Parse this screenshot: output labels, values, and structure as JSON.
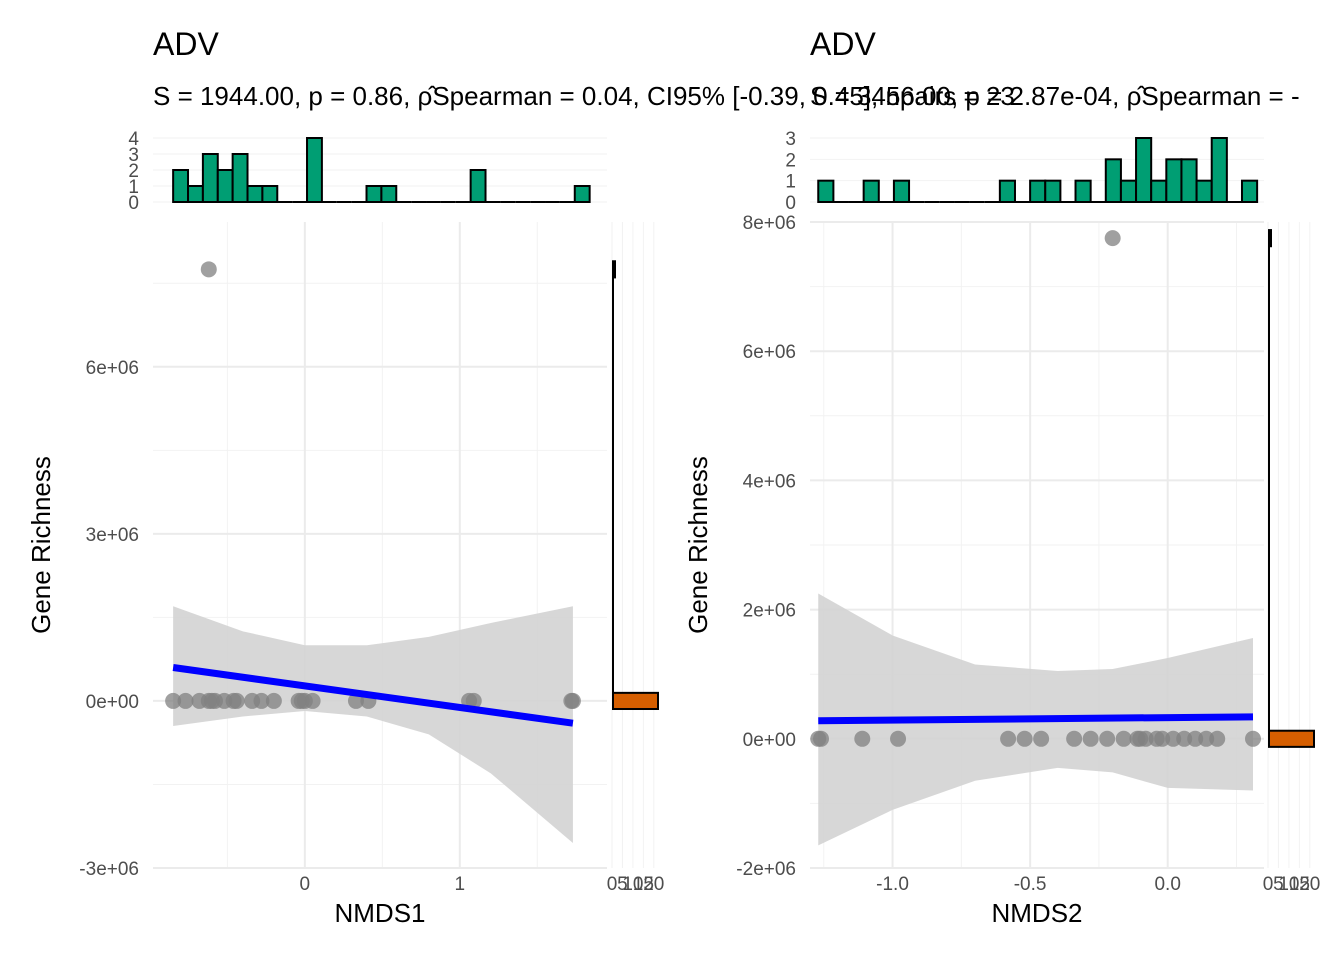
{
  "colors": {
    "top_hist_fill": "#009E73",
    "side_hist_fill": "#D55E00",
    "regression_line": "#0000FF",
    "confidence_band": "#D3D3D3",
    "points": "#808080"
  },
  "chart_data": [
    {
      "type": "scatter",
      "title": "ADV",
      "subtitle": "S = 1944.00, p = 0.86, ρ̂Spearman = 0.04, CI95% [-0.39, 0.45], npairs = 23",
      "xlabel": "NMDS1",
      "ylabel": "Gene Richness",
      "xlim": [
        -0.98,
        1.95
      ],
      "ylim": [
        -3000000,
        8600000
      ],
      "x_ticks": [
        0,
        1
      ],
      "x_tick_labels": [
        "0",
        "1"
      ],
      "y_ticks": [
        -3000000,
        0,
        3000000,
        6000000
      ],
      "y_tick_labels": [
        "-3e+06",
        "0e+00",
        "3e+06",
        "6e+06"
      ],
      "grid": true,
      "points": [
        {
          "x": -0.85,
          "y": 0
        },
        {
          "x": -0.77,
          "y": 0
        },
        {
          "x": -0.68,
          "y": 0
        },
        {
          "x": -0.62,
          "y": 0
        },
        {
          "x": -0.6,
          "y": 0
        },
        {
          "x": -0.58,
          "y": 0
        },
        {
          "x": -0.52,
          "y": 0
        },
        {
          "x": -0.46,
          "y": 0
        },
        {
          "x": -0.44,
          "y": 0
        },
        {
          "x": -0.34,
          "y": 0
        },
        {
          "x": -0.28,
          "y": 0
        },
        {
          "x": -0.2,
          "y": 0
        },
        {
          "x": -0.04,
          "y": 0
        },
        {
          "x": -0.02,
          "y": 0
        },
        {
          "x": 0,
          "y": 0
        },
        {
          "x": 0.05,
          "y": 0
        },
        {
          "x": 0.33,
          "y": 0
        },
        {
          "x": 0.41,
          "y": 0
        },
        {
          "x": 1.06,
          "y": 0
        },
        {
          "x": 1.09,
          "y": 0
        },
        {
          "x": 1.72,
          "y": 0
        },
        {
          "x": 1.73,
          "y": 0
        },
        {
          "x": -0.62,
          "y": 7750000
        }
      ],
      "fit_line": {
        "x": [
          -0.85,
          1.73
        ],
        "y": [
          600000,
          -400000
        ]
      },
      "ci_band": {
        "x": [
          -0.85,
          -0.4,
          0,
          0.4,
          0.8,
          1.2,
          1.73
        ],
        "upper": [
          1700000,
          1250000,
          1000000,
          1000000,
          1150000,
          1400000,
          1700000
        ],
        "lower": [
          -450000,
          -280000,
          -180000,
          -280000,
          -600000,
          -1300000,
          -2550000
        ]
      },
      "x_histogram": {
        "bin_width": 0.096,
        "bins": [
          {
            "x": -0.85,
            "count": 2
          },
          {
            "x": -0.754,
            "count": 1
          },
          {
            "x": -0.658,
            "count": 3
          },
          {
            "x": -0.562,
            "count": 2
          },
          {
            "x": -0.466,
            "count": 3
          },
          {
            "x": -0.37,
            "count": 1
          },
          {
            "x": -0.274,
            "count": 1
          },
          {
            "x": -0.178,
            "count": 0
          },
          {
            "x": -0.082,
            "count": 0
          },
          {
            "x": 0.014,
            "count": 4
          },
          {
            "x": 0.11,
            "count": 0
          },
          {
            "x": 0.206,
            "count": 0
          },
          {
            "x": 0.302,
            "count": 0
          },
          {
            "x": 0.398,
            "count": 1
          },
          {
            "x": 0.494,
            "count": 1
          },
          {
            "x": 0.59,
            "count": 0
          },
          {
            "x": 0.686,
            "count": 0
          },
          {
            "x": 0.782,
            "count": 0
          },
          {
            "x": 0.878,
            "count": 0
          },
          {
            "x": 0.974,
            "count": 0
          },
          {
            "x": 1.07,
            "count": 2
          },
          {
            "x": 1.166,
            "count": 0
          },
          {
            "x": 1.262,
            "count": 0
          },
          {
            "x": 1.358,
            "count": 0
          },
          {
            "x": 1.454,
            "count": 0
          },
          {
            "x": 1.55,
            "count": 0
          },
          {
            "x": 1.646,
            "count": 0
          },
          {
            "x": 1.742,
            "count": 1
          }
        ],
        "y_ticks": [
          0,
          1,
          2,
          3,
          4
        ],
        "y_max": 4
      },
      "y_histogram": {
        "bins": [
          {
            "y": 0,
            "count": 22
          },
          {
            "y": 7750000,
            "count": 1
          }
        ],
        "x_ticks": [
          0,
          5,
          10,
          15,
          20
        ],
        "x_tick_labels": [
          "0",
          "5",
          "10",
          "15",
          "20"
        ],
        "x_max": 22
      }
    },
    {
      "type": "scatter",
      "title": "ADV",
      "subtitle": "S = 3456.00, p = 2.87e-04, ρ̂Spearman = -",
      "xlabel": "NMDS2",
      "ylabel": "Gene Richness",
      "xlim": [
        -1.3,
        0.35
      ],
      "ylim": [
        -2000000,
        8000000
      ],
      "x_ticks": [
        -1.0,
        -0.5,
        0.0
      ],
      "x_tick_labels": [
        "-1.0",
        "-0.5",
        "0.0"
      ],
      "y_ticks": [
        -2000000,
        0,
        2000000,
        4000000,
        6000000,
        8000000
      ],
      "y_tick_labels": [
        "-2e+06",
        "0e+00",
        "2e+06",
        "4e+06",
        "6e+06",
        "8e+06"
      ],
      "grid": true,
      "points": [
        {
          "x": -1.27,
          "y": 0
        },
        {
          "x": -1.26,
          "y": 0
        },
        {
          "x": -1.11,
          "y": 0
        },
        {
          "x": -0.98,
          "y": 0
        },
        {
          "x": -0.58,
          "y": 0
        },
        {
          "x": -0.52,
          "y": 0
        },
        {
          "x": -0.46,
          "y": 0
        },
        {
          "x": -0.34,
          "y": 0
        },
        {
          "x": -0.28,
          "y": 0
        },
        {
          "x": -0.22,
          "y": 0
        },
        {
          "x": -0.16,
          "y": 0
        },
        {
          "x": -0.11,
          "y": 0
        },
        {
          "x": -0.1,
          "y": 0
        },
        {
          "x": -0.08,
          "y": 0
        },
        {
          "x": -0.04,
          "y": 0
        },
        {
          "x": -0.02,
          "y": 0
        },
        {
          "x": 0.02,
          "y": 0
        },
        {
          "x": 0.06,
          "y": 0
        },
        {
          "x": 0.1,
          "y": 0
        },
        {
          "x": 0.14,
          "y": 0
        },
        {
          "x": 0.18,
          "y": 0
        },
        {
          "x": 0.31,
          "y": 0
        },
        {
          "x": -0.2,
          "y": 7750000
        }
      ],
      "fit_line": {
        "x": [
          -1.27,
          0.31
        ],
        "y": [
          280000,
          340000
        ]
      },
      "ci_band": {
        "x": [
          -1.27,
          -1.0,
          -0.7,
          -0.4,
          -0.2,
          0.0,
          0.31
        ],
        "upper": [
          2250000,
          1600000,
          1150000,
          1050000,
          1080000,
          1250000,
          1560000
        ],
        "lower": [
          -1650000,
          -1100000,
          -650000,
          -450000,
          -520000,
          -760000,
          -800000
        ]
      },
      "x_histogram": {
        "bin_width": 0.055,
        "bins": [
          {
            "x": -1.27,
            "count": 1
          },
          {
            "x": -1.215,
            "count": 0
          },
          {
            "x": -1.16,
            "count": 0
          },
          {
            "x": -1.105,
            "count": 1
          },
          {
            "x": -1.05,
            "count": 0
          },
          {
            "x": -0.995,
            "count": 1
          },
          {
            "x": -0.94,
            "count": 0
          },
          {
            "x": -0.885,
            "count": 0
          },
          {
            "x": -0.83,
            "count": 0
          },
          {
            "x": -0.775,
            "count": 0
          },
          {
            "x": -0.72,
            "count": 0
          },
          {
            "x": -0.665,
            "count": 0
          },
          {
            "x": -0.61,
            "count": 1
          },
          {
            "x": -0.555,
            "count": 0
          },
          {
            "x": -0.5,
            "count": 1
          },
          {
            "x": -0.445,
            "count": 1
          },
          {
            "x": -0.39,
            "count": 0
          },
          {
            "x": -0.335,
            "count": 1
          },
          {
            "x": -0.28,
            "count": 0
          },
          {
            "x": -0.225,
            "count": 2
          },
          {
            "x": -0.17,
            "count": 1
          },
          {
            "x": -0.115,
            "count": 3
          },
          {
            "x": -0.06,
            "count": 1
          },
          {
            "x": -0.005,
            "count": 2
          },
          {
            "x": 0.05,
            "count": 2
          },
          {
            "x": 0.105,
            "count": 1
          },
          {
            "x": 0.16,
            "count": 3
          },
          {
            "x": 0.215,
            "count": 0
          },
          {
            "x": 0.27,
            "count": 1
          }
        ],
        "y_ticks": [
          0,
          1,
          2,
          3
        ],
        "y_max": 3
      },
      "y_histogram": {
        "bins": [
          {
            "y": 0,
            "count": 22
          },
          {
            "y": 7750000,
            "count": 1
          }
        ],
        "x_ticks": [
          0,
          5,
          10,
          15,
          20
        ],
        "x_tick_labels": [
          "0",
          "5",
          "10",
          "15",
          "20"
        ],
        "x_max": 22
      }
    }
  ]
}
